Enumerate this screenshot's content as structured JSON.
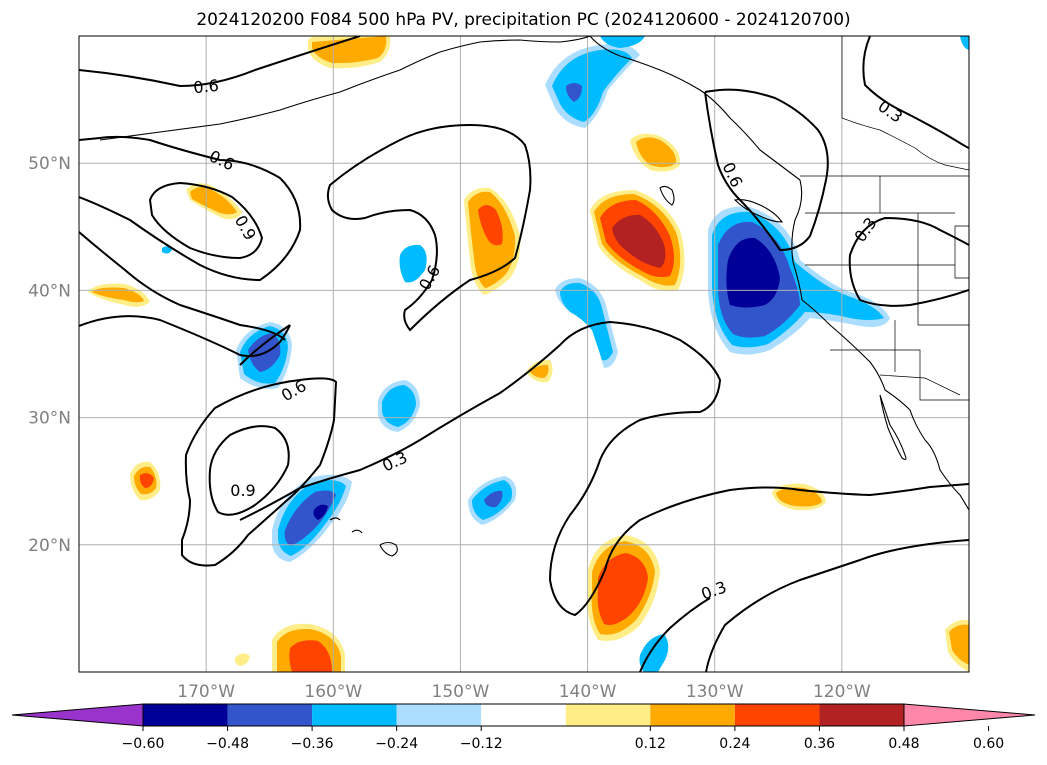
{
  "title": "2024120200 F084 500 hPa PV, precipitation PC (2024120600 - 2024120700)",
  "map": {
    "lon_range": [
      -180,
      -110
    ],
    "lat_range": [
      10,
      60
    ],
    "lon_ticks": [
      "170°W",
      "160°W",
      "150°W",
      "140°W",
      "130°W",
      "120°W"
    ],
    "lat_ticks": [
      "20°N",
      "30°N",
      "40°N",
      "50°N"
    ],
    "grid": true
  },
  "contours": {
    "variable": "500 hPa PV",
    "labels": [
      "0.6",
      "0.6",
      "0.9",
      "0.6",
      "0.6",
      "0.9",
      "0.3",
      "0.6",
      "0.3",
      "0.3",
      "0.3"
    ]
  },
  "colorbar": {
    "variable": "precipitation PC",
    "ticks": [
      "−0.60",
      "−0.48",
      "−0.36",
      "−0.24",
      "−0.12",
      "0.12",
      "0.24",
      "0.36",
      "0.48",
      "0.60"
    ],
    "colors": [
      "#9933cc",
      "#000099",
      "#3355cc",
      "#00bbff",
      "#aaddff",
      "#ffffff",
      "#ffee88",
      "#ffaa00",
      "#ff4400",
      "#b22222",
      "#ff88aa"
    ],
    "extend": "both"
  },
  "colors": {
    "grid": "#b0b0b0",
    "tick_label": "#808080",
    "contour": "#000000"
  }
}
